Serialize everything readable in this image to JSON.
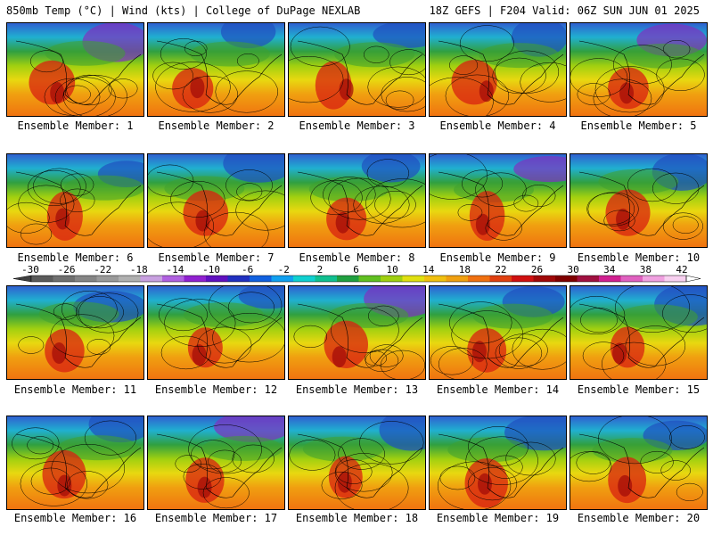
{
  "header": {
    "left": "850mb Temp (°C) | Wind (kts) | College of DuPage NEXLAB",
    "right": "18Z GEFS | F204 Valid: 06Z SUN JUN 01 2025"
  },
  "caption_prefix": "Ensemble Member:",
  "members": [
    {
      "label": "Ensemble Member: 1"
    },
    {
      "label": "Ensemble Member: 2"
    },
    {
      "label": "Ensemble Member: 3"
    },
    {
      "label": "Ensemble Member: 4"
    },
    {
      "label": "Ensemble Member: 5"
    },
    {
      "label": "Ensemble Member: 6"
    },
    {
      "label": "Ensemble Member: 7"
    },
    {
      "label": "Ensemble Member: 8"
    },
    {
      "label": "Ensemble Member: 9"
    },
    {
      "label": "Ensemble Member: 10"
    },
    {
      "label": "Ensemble Member: 11"
    },
    {
      "label": "Ensemble Member: 12"
    },
    {
      "label": "Ensemble Member: 13"
    },
    {
      "label": "Ensemble Member: 14"
    },
    {
      "label": "Ensemble Member: 15"
    },
    {
      "label": "Ensemble Member: 16"
    },
    {
      "label": "Ensemble Member: 17"
    },
    {
      "label": "Ensemble Member: 18"
    },
    {
      "label": "Ensemble Member: 19"
    },
    {
      "label": "Ensemble Member: 20"
    }
  ],
  "colorbar": {
    "tick_labels": [
      "-30",
      "-26",
      "-22",
      "-18",
      "-14",
      "-10",
      "-6",
      "-2",
      "2",
      "6",
      "10",
      "14",
      "18",
      "22",
      "26",
      "30",
      "34",
      "38",
      "42"
    ],
    "colors": [
      "#5a5a5a",
      "#707070",
      "#858585",
      "#9a9a9a",
      "#b0b0b0",
      "#c8a0e0",
      "#b060e0",
      "#9020d0",
      "#6010c0",
      "#2030c0",
      "#1060e0",
      "#10a0f0",
      "#10d0d0",
      "#10c090",
      "#20a040",
      "#60c020",
      "#a0d010",
      "#e0e010",
      "#f0c010",
      "#f0a010",
      "#f07010",
      "#e04010",
      "#d01010",
      "#a00808",
      "#800000",
      "#a01040",
      "#d02090",
      "#e060c0",
      "#f0a0e0",
      "#f8d0f0"
    ]
  }
}
